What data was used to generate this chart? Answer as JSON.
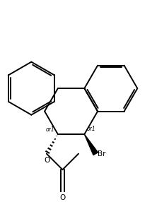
{
  "bg_color": "#ffffff",
  "line_color": "#000000",
  "line_width": 1.4,
  "fig_width": 2.22,
  "fig_height": 2.86,
  "dpi": 100,
  "label_br": "Br",
  "label_o": "O",
  "label_or1_left": "or1",
  "label_or1_right": "or1",
  "label_carbonyl_o": "O",
  "font_size_label": 7.5,
  "font_size_or1": 5.5
}
